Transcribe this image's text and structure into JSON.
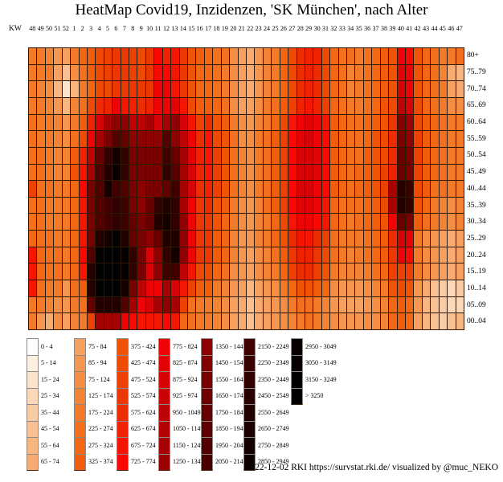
{
  "title": "HeatMap Covid19, Inzidenzen, 'SK München', nach Alter",
  "footer": "2022-12-02 RKI https://survstat.rki.de/ visualized by @muc_NEKO",
  "chart_data": {
    "type": "heatmap",
    "title": "HeatMap Covid19, Inzidenzen, 'SK München', nach Alter",
    "x_axis_label": "KW",
    "x_ticks": [
      "48",
      "49",
      "50",
      "51",
      "52",
      "1",
      "2",
      "3",
      "4",
      "5",
      "6",
      "7",
      "8",
      "9",
      "10",
      "11",
      "12",
      "13",
      "14",
      "15",
      "16",
      "17",
      "18",
      "19",
      "20",
      "21",
      "22",
      "23",
      "24",
      "25",
      "26",
      "27",
      "28",
      "29",
      "30",
      "31",
      "32",
      "33",
      "34",
      "35",
      "36",
      "37",
      "38",
      "39",
      "40",
      "41",
      "42",
      "43",
      "44",
      "45",
      "46",
      "47"
    ],
    "y_ticks": [
      "80+",
      "75..79",
      "70..74",
      "65..69",
      "60..64",
      "55..59",
      "50..54",
      "45..49",
      "40..44",
      "35..39",
      "30..34",
      "25..29",
      "20..24",
      "15..19",
      "10..14",
      "05..09",
      "00..04"
    ],
    "legend_labels": [
      "0 - 4",
      "5 - 14",
      "15 - 24",
      "25 - 34",
      "35 - 44",
      "45 - 54",
      "55 - 64",
      "65 - 74",
      "75 - 84",
      "85 - 94",
      "75 - 124",
      "125 - 174",
      "175 - 224",
      "225 - 274",
      "275 - 324",
      "325 - 374",
      "375 - 424",
      "425 - 474",
      "475 - 524",
      "525 - 574",
      "575 - 624",
      "625 - 674",
      "675 - 724",
      "725 - 774",
      "775 - 824",
      "825 - 874",
      "875 - 924",
      "925 - 974",
      "950 - 1049",
      "1050 - 1149",
      "1150 - 1249",
      "1250 - 1349",
      "1350 - 1449",
      "1450 - 1549",
      "1550 - 1649",
      "1650 - 1749",
      "1750 - 1849",
      "1850 - 1949",
      "1950 - 2049",
      "2050 - 2149",
      "2150 - 2249",
      "2250 - 2349",
      "2350 - 2449",
      "2450 - 2549",
      "2550 - 2649",
      "2650 - 2749",
      "2750 - 2849",
      "2850 - 2949",
      "2950 - 3049",
      "3050 - 3149",
      "3150 - 3249",
      "> 3250"
    ],
    "legend_rows_per_column": 8,
    "palette": [
      "#FFFFFF",
      "#FDF0E0",
      "#FCE4CC",
      "#FBD8B8",
      "#FACCA5",
      "#F9C193",
      "#F8B681",
      "#F7AB70",
      "#F7A160",
      "#F69751",
      "#F58D42",
      "#F48435",
      "#F37A29",
      "#F2701E",
      "#F16714",
      "#F05D0C",
      "#EF5406",
      "#ED4A03",
      "#EC4102",
      "#EB3701",
      "#EC2D01",
      "#EF2201",
      "#F41502",
      "#FA0803",
      "#EE0306",
      "#E20307",
      "#D60307",
      "#CA0306",
      "#BE0306",
      "#B20205",
      "#A60204",
      "#9A0103",
      "#8E0102",
      "#840101",
      "#7A0101",
      "#700000",
      "#660000",
      "#5C0000",
      "#530000",
      "#4A0000",
      "#410000",
      "#390000",
      "#310000",
      "#290000",
      "#220000",
      "#1B0000",
      "#150000",
      "#0F0000",
      "#0A0000",
      "#060000",
      "#030000",
      "#000000"
    ],
    "grid_bin_index": [
      [
        12,
        12,
        11,
        9,
        8,
        12,
        14,
        15,
        17,
        18,
        19,
        19,
        18,
        17,
        19,
        23,
        21,
        22,
        19,
        16,
        15,
        14,
        13,
        13,
        10,
        8,
        7,
        9,
        11,
        12,
        14,
        17,
        20,
        21,
        21,
        17,
        14,
        13,
        13,
        12,
        13,
        14,
        15,
        16,
        24,
        23,
        16,
        14,
        13,
        12,
        12,
        13
      ],
      [
        12,
        12,
        12,
        8,
        5,
        10,
        13,
        15,
        17,
        18,
        19,
        19,
        18,
        17,
        19,
        23,
        23,
        22,
        19,
        16,
        14,
        14,
        13,
        12,
        10,
        8,
        7,
        9,
        11,
        12,
        14,
        17,
        20,
        21,
        20,
        17,
        14,
        13,
        11,
        12,
        13,
        14,
        15,
        16,
        25,
        24,
        16,
        14,
        13,
        11,
        7,
        6
      ],
      [
        12,
        11,
        10,
        6,
        2,
        6,
        12,
        14,
        17,
        17,
        19,
        19,
        19,
        19,
        19,
        24,
        24,
        22,
        19,
        16,
        14,
        14,
        13,
        12,
        10,
        8,
        7,
        9,
        11,
        12,
        14,
        17,
        20,
        21,
        20,
        17,
        14,
        13,
        11,
        12,
        13,
        14,
        15,
        16,
        26,
        24,
        16,
        14,
        13,
        12,
        8,
        7
      ],
      [
        12,
        12,
        11,
        9,
        6,
        11,
        13,
        17,
        20,
        21,
        24,
        22,
        21,
        20,
        21,
        24,
        24,
        25,
        22,
        17,
        15,
        15,
        14,
        13,
        10,
        8,
        8,
        10,
        12,
        13,
        15,
        18,
        21,
        22,
        21,
        18,
        14,
        13,
        12,
        12,
        13,
        14,
        16,
        17,
        28,
        26,
        17,
        14,
        13,
        12,
        10,
        10
      ],
      [
        13,
        12,
        12,
        11,
        9,
        12,
        15,
        21,
        26,
        30,
        32,
        32,
        28,
        28,
        30,
        26,
        30,
        32,
        26,
        22,
        18,
        20,
        16,
        15,
        12,
        10,
        9,
        11,
        12,
        14,
        17,
        22,
        24,
        25,
        24,
        22,
        15,
        14,
        13,
        13,
        14,
        15,
        16,
        19,
        33,
        31,
        17,
        15,
        14,
        13,
        12,
        12
      ],
      [
        13,
        12,
        12,
        11,
        10,
        13,
        17,
        24,
        30,
        34,
        38,
        36,
        32,
        32,
        32,
        32,
        38,
        32,
        28,
        24,
        20,
        22,
        17,
        16,
        13,
        10,
        10,
        12,
        13,
        15,
        18,
        23,
        25,
        26,
        24,
        23,
        15,
        14,
        13,
        13,
        14,
        16,
        17,
        20,
        34,
        32,
        18,
        15,
        14,
        13,
        12,
        12
      ],
      [
        13,
        13,
        12,
        11,
        11,
        15,
        21,
        28,
        36,
        42,
        46,
        42,
        34,
        34,
        34,
        34,
        40,
        36,
        30,
        25,
        21,
        22,
        18,
        16,
        13,
        11,
        10,
        12,
        13,
        15,
        18,
        23,
        26,
        26,
        25,
        23,
        15,
        14,
        13,
        13,
        15,
        16,
        17,
        20,
        36,
        34,
        18,
        15,
        14,
        13,
        12,
        12
      ],
      [
        13,
        13,
        12,
        11,
        11,
        16,
        22,
        30,
        38,
        44,
        48,
        42,
        34,
        34,
        34,
        34,
        42,
        38,
        30,
        26,
        21,
        22,
        18,
        16,
        13,
        11,
        10,
        12,
        13,
        15,
        18,
        23,
        26,
        26,
        25,
        23,
        15,
        14,
        13,
        14,
        15,
        16,
        18,
        21,
        36,
        34,
        18,
        15,
        14,
        13,
        12,
        12
      ],
      [
        18,
        13,
        13,
        12,
        12,
        14,
        23,
        34,
        38,
        46,
        40,
        38,
        34,
        32,
        34,
        34,
        36,
        40,
        30,
        26,
        20,
        21,
        18,
        16,
        13,
        11,
        10,
        12,
        13,
        15,
        18,
        23,
        26,
        26,
        24,
        23,
        15,
        14,
        13,
        14,
        15,
        16,
        18,
        30,
        43,
        41,
        17,
        15,
        13,
        13,
        12,
        12
      ],
      [
        13,
        13,
        12,
        12,
        12,
        14,
        22,
        34,
        38,
        40,
        42,
        40,
        34,
        32,
        36,
        42,
        44,
        42,
        30,
        24,
        19,
        20,
        16,
        15,
        12,
        10,
        9,
        11,
        13,
        15,
        18,
        23,
        25,
        25,
        24,
        22,
        14,
        13,
        13,
        13,
        14,
        15,
        17,
        30,
        44,
        42,
        16,
        14,
        12,
        11,
        10,
        11
      ],
      [
        13,
        13,
        12,
        12,
        12,
        14,
        22,
        34,
        38,
        40,
        42,
        40,
        36,
        34,
        36,
        44,
        46,
        42,
        32,
        24,
        19,
        19,
        16,
        14,
        12,
        10,
        9,
        11,
        12,
        14,
        17,
        22,
        24,
        24,
        23,
        22,
        14,
        13,
        12,
        13,
        14,
        15,
        16,
        24,
        36,
        34,
        15,
        13,
        12,
        11,
        10,
        11
      ],
      [
        14,
        13,
        13,
        12,
        12,
        14,
        22,
        34,
        44,
        46,
        50,
        44,
        36,
        34,
        32,
        36,
        44,
        44,
        32,
        24,
        19,
        19,
        15,
        14,
        11,
        9,
        9,
        11,
        12,
        14,
        16,
        20,
        22,
        22,
        20,
        18,
        13,
        12,
        12,
        12,
        13,
        14,
        15,
        20,
        26,
        25,
        12,
        10,
        9,
        8,
        7,
        8
      ],
      [
        22,
        14,
        13,
        13,
        12,
        14,
        23,
        38,
        50,
        51,
        51,
        50,
        42,
        34,
        26,
        32,
        42,
        46,
        32,
        24,
        19,
        19,
        15,
        14,
        11,
        9,
        8,
        10,
        11,
        13,
        15,
        19,
        21,
        21,
        19,
        17,
        13,
        12,
        11,
        12,
        13,
        14,
        15,
        19,
        24,
        23,
        12,
        10,
        9,
        8,
        7,
        8
      ],
      [
        22,
        14,
        13,
        13,
        12,
        14,
        22,
        44,
        51,
        51,
        51,
        50,
        42,
        34,
        26,
        32,
        40,
        40,
        28,
        22,
        17,
        17,
        14,
        13,
        10,
        9,
        8,
        10,
        11,
        12,
        14,
        18,
        20,
        20,
        18,
        16,
        12,
        11,
        11,
        11,
        12,
        13,
        14,
        18,
        18,
        18,
        12,
        10,
        9,
        8,
        7,
        8
      ],
      [
        22,
        13,
        12,
        12,
        9,
        13,
        15,
        44,
        51,
        51,
        51,
        46,
        34,
        28,
        24,
        24,
        30,
        26,
        22,
        18,
        15,
        15,
        12,
        11,
        9,
        8,
        6,
        8,
        9,
        10,
        12,
        14,
        16,
        16,
        15,
        14,
        10,
        9,
        9,
        9,
        10,
        11,
        12,
        16,
        17,
        16,
        9,
        7,
        5,
        4,
        3,
        4
      ],
      [
        12,
        12,
        11,
        10,
        9,
        12,
        13,
        36,
        44,
        44,
        44,
        38,
        30,
        24,
        26,
        30,
        32,
        30,
        18,
        13,
        12,
        12,
        11,
        10,
        8,
        7,
        5,
        7,
        8,
        9,
        10,
        12,
        13,
        13,
        12,
        11,
        9,
        8,
        8,
        8,
        9,
        10,
        11,
        14,
        15,
        14,
        9,
        6,
        5,
        4,
        3,
        3
      ],
      [
        12,
        9,
        7,
        10,
        8,
        11,
        12,
        18,
        30,
        30,
        30,
        24,
        23,
        22,
        22,
        22,
        23,
        22,
        14,
        13,
        12,
        12,
        11,
        10,
        8,
        7,
        5,
        7,
        8,
        9,
        10,
        11,
        12,
        13,
        12,
        11,
        10,
        9,
        9,
        9,
        10,
        10,
        11,
        14,
        15,
        14,
        8,
        6,
        5,
        4,
        5,
        6
      ]
    ],
    "legend_position": "bottom",
    "grid_lines": true
  }
}
